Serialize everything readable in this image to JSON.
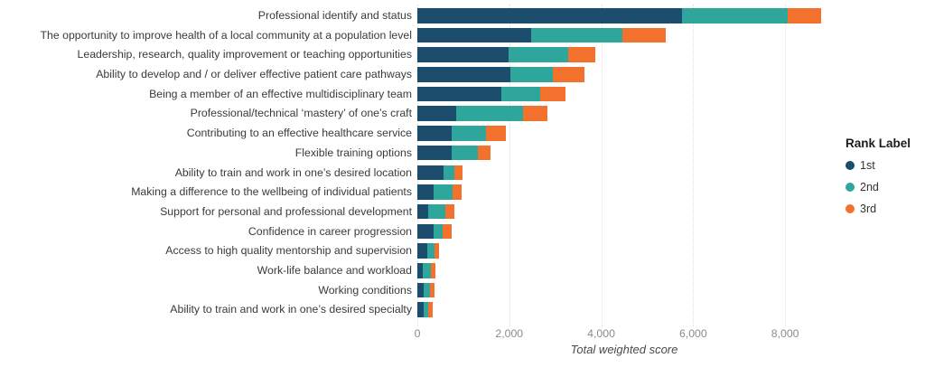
{
  "chart_data": {
    "type": "bar",
    "orientation": "horizontal",
    "stacked": true,
    "title": "",
    "xlabel": "Total weighted score",
    "ylabel": "",
    "xlim": [
      0,
      9000
    ],
    "grid": "vertical-dotted-major-only",
    "x_ticks": [
      "0",
      "2,000",
      "4,000",
      "6,000",
      "8,000"
    ],
    "x_tick_values": [
      0,
      2000,
      4000,
      6000,
      8000
    ],
    "categories": [
      "Professional identify and status",
      "The opportunity to improve health of a local community at a population level",
      "Leadership, research, quality improvement or teaching opportunities",
      "Ability to develop and / or deliver effective patient care pathways",
      "Being a member of an effective multidisciplinary team",
      "Professional/technical ‘mastery’ of one’s craft",
      "Contributing to an effective healthcare service",
      "Flexible training options",
      "Ability to train and work in one’s desired location",
      "Making a difference to the wellbeing of individual patients",
      "Support for personal and professional development",
      "Confidence in career progression",
      "Access to high quality mentorship and supervision",
      "Work-life balance and workload",
      "Working conditions",
      "Ability to train and work in one’s desired specialty"
    ],
    "series": [
      {
        "name": "1st",
        "color": "#1d4d6d",
        "values": [
          5760,
          2480,
          1980,
          2020,
          1830,
          850,
          750,
          750,
          570,
          355,
          240,
          355,
          225,
          125,
          140,
          140
        ]
      },
      {
        "name": "2nd",
        "color": "#2fa69c",
        "values": [
          2300,
          1990,
          1300,
          920,
          840,
          1450,
          740,
          570,
          230,
          415,
          375,
          200,
          150,
          165,
          130,
          105
        ]
      },
      {
        "name": "3rd",
        "color": "#f2712c",
        "values": [
          730,
          930,
          600,
          690,
          550,
          530,
          430,
          280,
          190,
          195,
          185,
          185,
          100,
          110,
          105,
          80
        ]
      }
    ],
    "legend": {
      "title": "Rank Label",
      "position": "right",
      "entries": [
        {
          "label": "1st",
          "color": "#1d4d6d"
        },
        {
          "label": "2nd",
          "color": "#2fa69c"
        },
        {
          "label": "3rd",
          "color": "#f2712c"
        }
      ]
    }
  }
}
